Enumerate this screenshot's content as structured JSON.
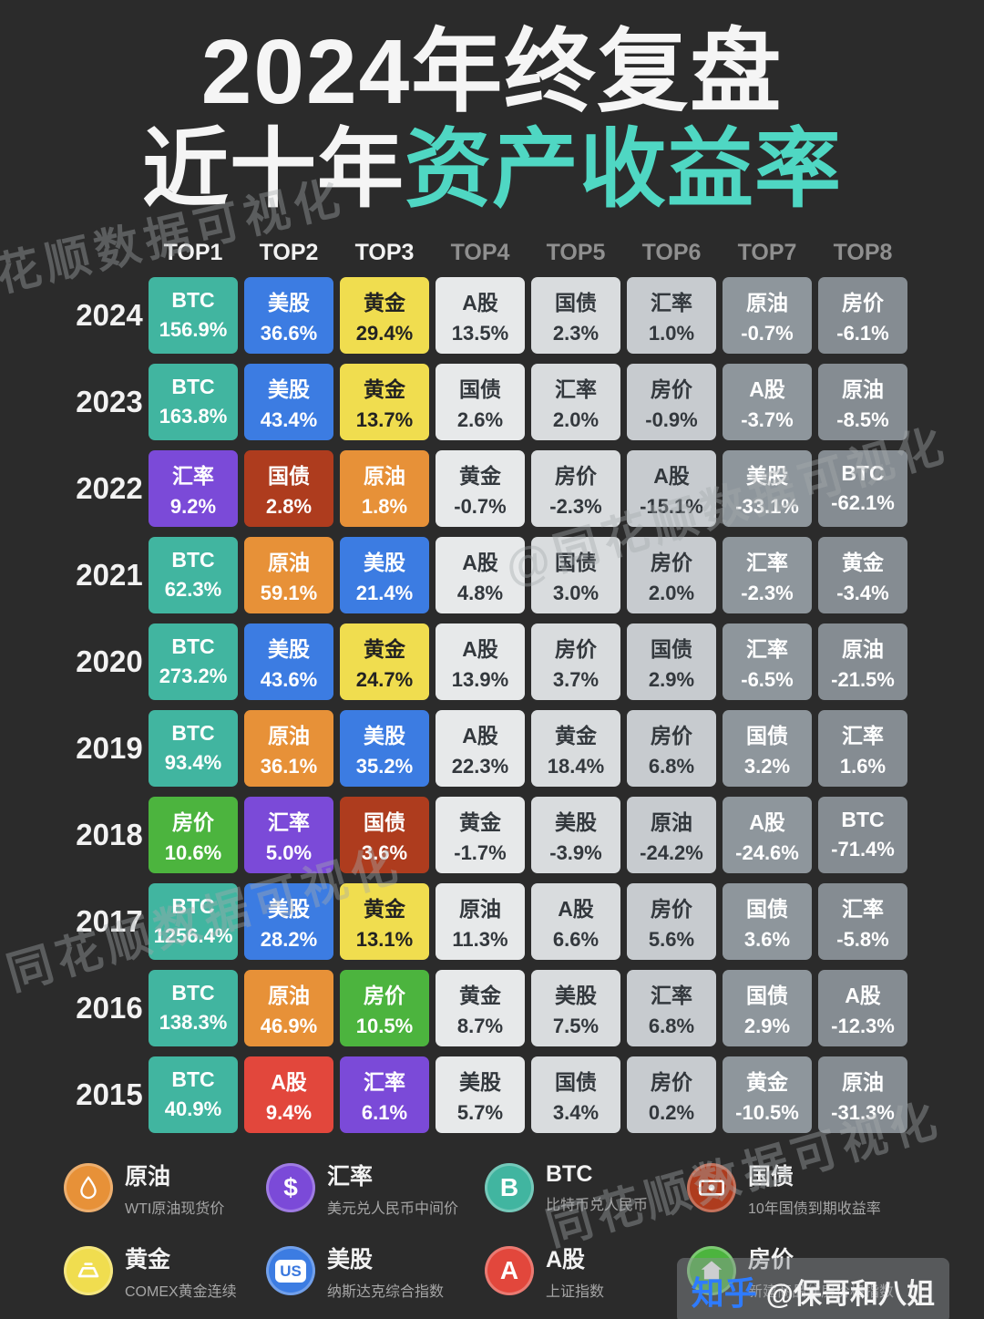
{
  "title": {
    "line1": "2024年终复盘",
    "line2_white": "近十年",
    "line2_accent": "资产收益率"
  },
  "chart_data": {
    "type": "table",
    "title": "2024年终复盘 近十年资产收益率",
    "unit": "%",
    "columns": [
      "TOP1",
      "TOP2",
      "TOP3",
      "TOP4",
      "TOP5",
      "TOP6",
      "TOP7",
      "TOP8"
    ],
    "rows": [
      {
        "year": "2024",
        "cells": [
          {
            "asset": "BTC",
            "value": 156.9
          },
          {
            "asset": "美股",
            "value": 36.6
          },
          {
            "asset": "黄金",
            "value": 29.4
          },
          {
            "asset": "A股",
            "value": 13.5
          },
          {
            "asset": "国债",
            "value": 2.3
          },
          {
            "asset": "汇率",
            "value": 1.0
          },
          {
            "asset": "原油",
            "value": -0.7
          },
          {
            "asset": "房价",
            "value": -6.1
          }
        ]
      },
      {
        "year": "2023",
        "cells": [
          {
            "asset": "BTC",
            "value": 163.8
          },
          {
            "asset": "美股",
            "value": 43.4
          },
          {
            "asset": "黄金",
            "value": 13.7
          },
          {
            "asset": "国债",
            "value": 2.6
          },
          {
            "asset": "汇率",
            "value": 2.0
          },
          {
            "asset": "房价",
            "value": -0.9
          },
          {
            "asset": "A股",
            "value": -3.7
          },
          {
            "asset": "原油",
            "value": -8.5
          }
        ]
      },
      {
        "year": "2022",
        "cells": [
          {
            "asset": "汇率",
            "value": 9.2
          },
          {
            "asset": "国债",
            "value": 2.8
          },
          {
            "asset": "原油",
            "value": 1.8
          },
          {
            "asset": "黄金",
            "value": -0.7
          },
          {
            "asset": "房价",
            "value": -2.3
          },
          {
            "asset": "A股",
            "value": -15.1
          },
          {
            "asset": "美股",
            "value": -33.1
          },
          {
            "asset": "BTC",
            "value": -62.1
          }
        ]
      },
      {
        "year": "2021",
        "cells": [
          {
            "asset": "BTC",
            "value": 62.3
          },
          {
            "asset": "原油",
            "value": 59.1
          },
          {
            "asset": "美股",
            "value": 21.4
          },
          {
            "asset": "A股",
            "value": 4.8
          },
          {
            "asset": "国债",
            "value": 3.0
          },
          {
            "asset": "房价",
            "value": 2.0
          },
          {
            "asset": "汇率",
            "value": -2.3
          },
          {
            "asset": "黄金",
            "value": -3.4
          }
        ]
      },
      {
        "year": "2020",
        "cells": [
          {
            "asset": "BTC",
            "value": 273.2
          },
          {
            "asset": "美股",
            "value": 43.6
          },
          {
            "asset": "黄金",
            "value": 24.7
          },
          {
            "asset": "A股",
            "value": 13.9
          },
          {
            "asset": "房价",
            "value": 3.7
          },
          {
            "asset": "国债",
            "value": 2.9
          },
          {
            "asset": "汇率",
            "value": -6.5
          },
          {
            "asset": "原油",
            "value": -21.5
          }
        ]
      },
      {
        "year": "2019",
        "cells": [
          {
            "asset": "BTC",
            "value": 93.4
          },
          {
            "asset": "原油",
            "value": 36.1
          },
          {
            "asset": "美股",
            "value": 35.2
          },
          {
            "asset": "A股",
            "value": 22.3
          },
          {
            "asset": "黄金",
            "value": 18.4
          },
          {
            "asset": "房价",
            "value": 6.8
          },
          {
            "asset": "国债",
            "value": 3.2
          },
          {
            "asset": "汇率",
            "value": 1.6
          }
        ]
      },
      {
        "year": "2018",
        "cells": [
          {
            "asset": "房价",
            "value": 10.6
          },
          {
            "asset": "汇率",
            "value": 5.0
          },
          {
            "asset": "国债",
            "value": 3.6
          },
          {
            "asset": "黄金",
            "value": -1.7
          },
          {
            "asset": "美股",
            "value": -3.9
          },
          {
            "asset": "原油",
            "value": -24.2
          },
          {
            "asset": "A股",
            "value": -24.6
          },
          {
            "asset": "BTC",
            "value": -71.4
          }
        ]
      },
      {
        "year": "2017",
        "cells": [
          {
            "asset": "BTC",
            "value": 1256.4
          },
          {
            "asset": "美股",
            "value": 28.2
          },
          {
            "asset": "黄金",
            "value": 13.1
          },
          {
            "asset": "原油",
            "value": 11.3
          },
          {
            "asset": "A股",
            "value": 6.6
          },
          {
            "asset": "房价",
            "value": 5.6
          },
          {
            "asset": "国债",
            "value": 3.6
          },
          {
            "asset": "汇率",
            "value": -5.8
          }
        ]
      },
      {
        "year": "2016",
        "cells": [
          {
            "asset": "BTC",
            "value": 138.3
          },
          {
            "asset": "原油",
            "value": 46.9
          },
          {
            "asset": "房价",
            "value": 10.5
          },
          {
            "asset": "黄金",
            "value": 8.7
          },
          {
            "asset": "美股",
            "value": 7.5
          },
          {
            "asset": "汇率",
            "value": 6.8
          },
          {
            "asset": "国债",
            "value": 2.9
          },
          {
            "asset": "A股",
            "value": -12.3
          }
        ]
      },
      {
        "year": "2015",
        "cells": [
          {
            "asset": "BTC",
            "value": 40.9
          },
          {
            "asset": "A股",
            "value": 9.4
          },
          {
            "asset": "汇率",
            "value": 6.1
          },
          {
            "asset": "美股",
            "value": 5.7
          },
          {
            "asset": "国债",
            "value": 3.4
          },
          {
            "asset": "房价",
            "value": 0.2
          },
          {
            "asset": "黄金",
            "value": -10.5
          },
          {
            "asset": "原油",
            "value": -31.3
          }
        ]
      }
    ]
  },
  "colors": {
    "assets": {
      "BTC": "#41b5a0",
      "美股": "#3c7ce2",
      "黄金": "#f0dd4f",
      "A股": "#e2473c",
      "国债": "#ae3c1e",
      "汇率": "#7b4ad8",
      "原油": "#e79138",
      "房价": "#4cb43e"
    },
    "rank_grays": [
      "#e7e9ea",
      "#d9dcde",
      "#c7cbcf",
      "#8e969c",
      "#858c92"
    ],
    "text_light": "#ffffff",
    "text_dark": "#33383d",
    "text_on_gold": "#222222",
    "accent": "#4fd7c3"
  },
  "legend": {
    "rows": [
      [
        {
          "name": "原油",
          "desc": "WTI原油现货价",
          "icon": "oil-drop-icon",
          "color": "#e79138"
        },
        {
          "name": "汇率",
          "desc": "美元兑人民币中间价",
          "icon": "dollar-icon",
          "color": "#7b4ad8"
        },
        {
          "name": "BTC",
          "desc": "比特币兑人民币",
          "icon": "btc-icon",
          "color": "#41b5a0"
        },
        {
          "name": "国债",
          "desc": "10年国债到期收益率",
          "icon": "banknote-icon",
          "color": "#ae3c1e"
        }
      ],
      [
        {
          "name": "黄金",
          "desc": "COMEX黄金连续",
          "icon": "gold-ingot-icon",
          "color": "#f0dd4f"
        },
        {
          "name": "美股",
          "desc": "纳斯达克综合指数",
          "icon": "us-stock-icon",
          "color": "#3c7ce2"
        },
        {
          "name": "A股",
          "desc": "上证指数",
          "icon": "a-share-icon",
          "color": "#e2473c"
        },
        {
          "name": "房价",
          "desc": "新建商品住房价格指数",
          "icon": "house-icon",
          "color": "#4cb43e"
        }
      ]
    ]
  },
  "watermarks": {
    "brand": "同花顺数据可视化",
    "brand_at": "@同花顺数据可视化"
  },
  "credit": {
    "platform": "知乎",
    "handle": "@保哥和八姐"
  }
}
